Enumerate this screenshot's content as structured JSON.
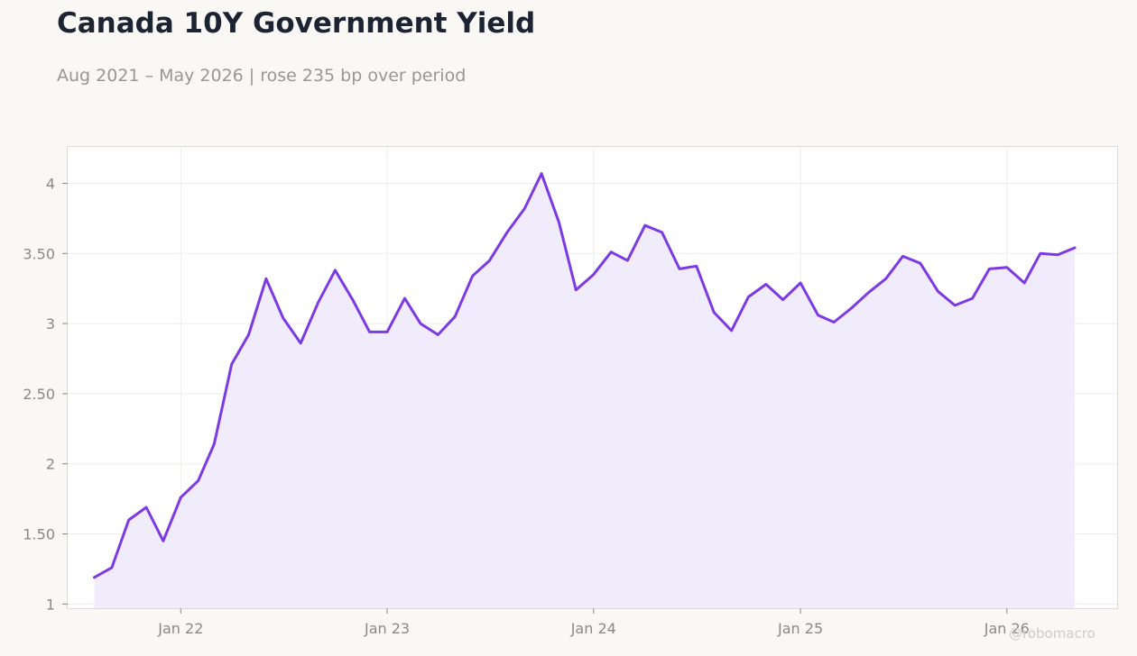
{
  "header": {
    "title": "Canada 10Y Government Yield",
    "subtitle": "Aug 2021 – May 2026 | rose 235 bp over period"
  },
  "watermark": "@robomacro",
  "colors": {
    "line": "#7b3ae4",
    "fill": "#f1ecfc",
    "background": "#f9f8f5",
    "plot_background": "#ffffff"
  },
  "chart_data": {
    "type": "area",
    "title": "Canada 10Y Government Yield",
    "subtitle": "Aug 2021 – May 2026 | rose 235 bp over period",
    "xlabel": "",
    "ylabel": "",
    "grid": true,
    "legend": "none",
    "ylim": [
      0.97,
      4.26
    ],
    "xlim": [
      "2021-06-15",
      "2026-07-15"
    ],
    "y_ticks": [
      1,
      1.5,
      2,
      2.5,
      3,
      3.5,
      4
    ],
    "y_tick_labels": [
      "1",
      "1.50",
      "2",
      "2.50",
      "3",
      "3.50",
      "4"
    ],
    "x_ticks": [
      "2022-01-01",
      "2023-01-01",
      "2024-01-01",
      "2025-01-01",
      "2026-01-01"
    ],
    "x_tick_labels": [
      "Jan 22",
      "Jan 23",
      "Jan 24",
      "Jan 25",
      "Jan 26"
    ],
    "series": [
      {
        "x": [
          "2021-08",
          "2021-09",
          "2021-10",
          "2021-11",
          "2021-12",
          "2022-01",
          "2022-02",
          "2022-03",
          "2022-04",
          "2022-05",
          "2022-06",
          "2022-07",
          "2022-08",
          "2022-09",
          "2022-10",
          "2022-11",
          "2022-12",
          "2023-01",
          "2023-02",
          "2023-03",
          "2023-04",
          "2023-05",
          "2023-06",
          "2023-07",
          "2023-08",
          "2023-09",
          "2023-10",
          "2023-11",
          "2023-12",
          "2024-01",
          "2024-02",
          "2024-03",
          "2024-04",
          "2024-05",
          "2024-06",
          "2024-07",
          "2024-08",
          "2024-09",
          "2024-10",
          "2024-11",
          "2024-12",
          "2025-01",
          "2025-02",
          "2025-03",
          "2025-04",
          "2025-05",
          "2025-06",
          "2025-07",
          "2025-08",
          "2025-09",
          "2025-10",
          "2025-11",
          "2025-12",
          "2026-01",
          "2026-02",
          "2026-03",
          "2026-04",
          "2026-05"
        ],
        "values": [
          1.19,
          1.26,
          1.6,
          1.69,
          1.45,
          1.76,
          1.88,
          2.14,
          2.71,
          2.92,
          3.32,
          3.04,
          2.86,
          3.15,
          3.38,
          3.17,
          2.94,
          2.94,
          3.18,
          3.0,
          2.92,
          3.05,
          3.34,
          3.45,
          3.65,
          3.82,
          4.07,
          3.72,
          3.24,
          3.35,
          3.51,
          3.45,
          3.7,
          3.65,
          3.39,
          3.41,
          3.08,
          2.95,
          3.19,
          3.28,
          3.17,
          3.29,
          3.06,
          3.01,
          3.11,
          3.22,
          3.32,
          3.48,
          3.43,
          3.23,
          3.13,
          3.18,
          3.39,
          3.4,
          3.29,
          3.5,
          3.49,
          3.54
        ]
      }
    ]
  }
}
